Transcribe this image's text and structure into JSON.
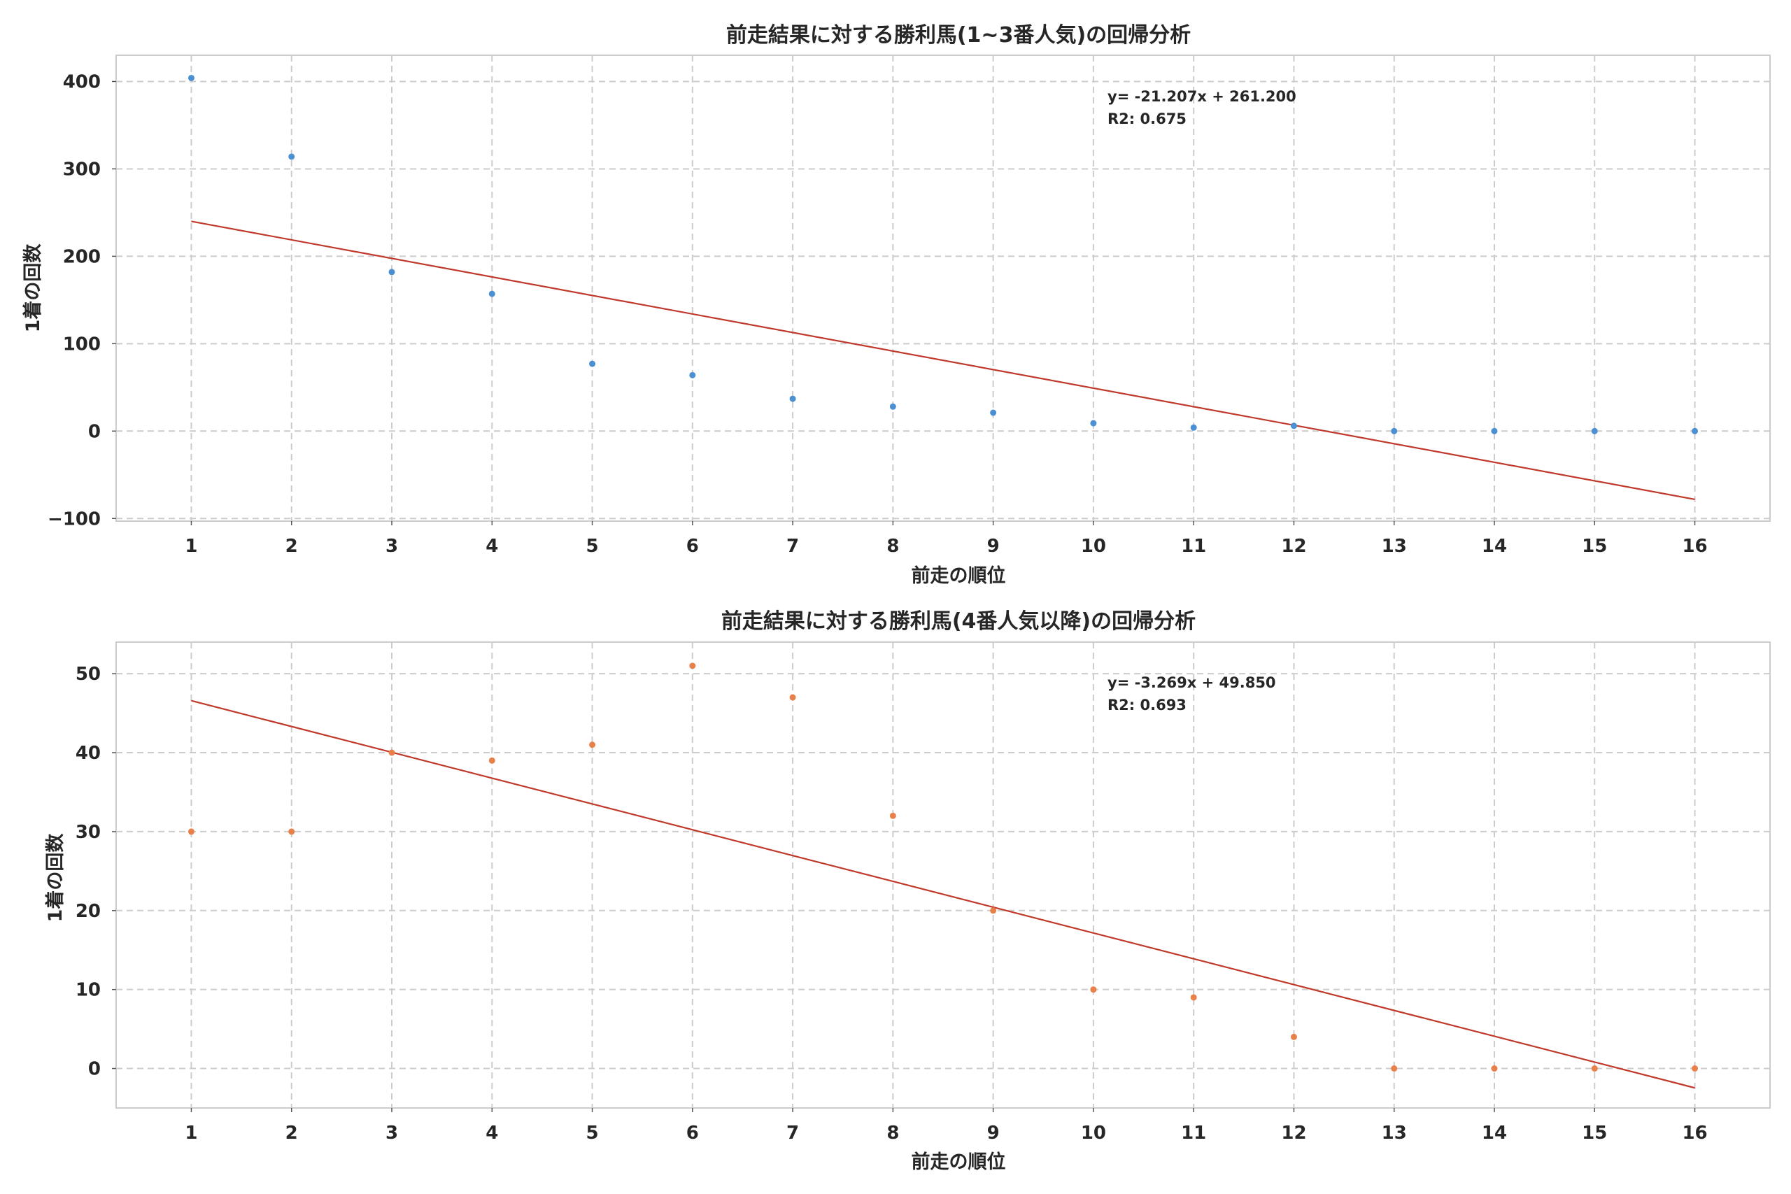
{
  "chart_data": [
    {
      "type": "scatter",
      "title": "前走結果に対する勝利馬(1~3番人気)の回帰分析",
      "xlabel": "前走の順位",
      "ylabel": "1着の回数",
      "x": [
        1,
        2,
        3,
        4,
        5,
        6,
        7,
        8,
        9,
        10,
        11,
        12,
        13,
        14,
        15,
        16
      ],
      "values": [
        404,
        314,
        182,
        157,
        77,
        64,
        37,
        28,
        21,
        9,
        4,
        6,
        0,
        0,
        0,
        0
      ],
      "xticks": [
        "1",
        "2",
        "3",
        "4",
        "5",
        "6",
        "7",
        "8",
        "9",
        "10",
        "11",
        "12",
        "13",
        "14",
        "15",
        "16"
      ],
      "yticks": [
        "400",
        "300",
        "200",
        "100",
        "0",
        "−100"
      ],
      "ytick_values": [
        400,
        300,
        200,
        100,
        0,
        -100
      ],
      "xlim": [
        0.25,
        16.75
      ],
      "ylim": [
        -103,
        430
      ],
      "point_color": "#4a90d2",
      "fit": {
        "slope": -21.207,
        "intercept": 261.2,
        "color": "#c0392b"
      },
      "annotation": {
        "equation": "y= -21.207x + 261.200",
        "r2": "R2: 0.675"
      },
      "grid": true
    },
    {
      "type": "scatter",
      "title": "前走結果に対する勝利馬(4番人気以降)の回帰分析",
      "xlabel": "前走の順位",
      "ylabel": "1着の回数",
      "x": [
        1,
        2,
        3,
        4,
        5,
        6,
        7,
        8,
        9,
        10,
        11,
        12,
        13,
        14,
        15,
        16
      ],
      "values": [
        30,
        30,
        40,
        39,
        41,
        51,
        47,
        32,
        20,
        10,
        9,
        4,
        0,
        0,
        0,
        0
      ],
      "xticks": [
        "1",
        "2",
        "3",
        "4",
        "5",
        "6",
        "7",
        "8",
        "9",
        "10",
        "11",
        "12",
        "13",
        "14",
        "15",
        "16"
      ],
      "yticks": [
        "50",
        "40",
        "30",
        "20",
        "10",
        "0"
      ],
      "ytick_values": [
        50,
        40,
        30,
        20,
        10,
        0
      ],
      "xlim": [
        0.25,
        16.75
      ],
      "ylim": [
        -5,
        54
      ],
      "point_color": "#e8804a",
      "fit": {
        "slope": -3.269,
        "intercept": 49.85,
        "color": "#c0392b"
      },
      "annotation": {
        "equation": "y= -3.269x + 49.850",
        "r2": "R2: 0.693"
      },
      "grid": true
    }
  ]
}
